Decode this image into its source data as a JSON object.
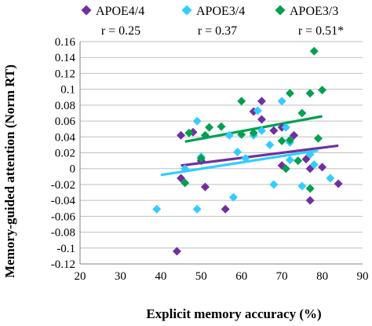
{
  "chart_data": {
    "type": "scatter",
    "xlabel": "Explicit memory accuracy (%)",
    "ylabel": "Memory-guided attention (Norm RT)",
    "xlim": [
      20,
      90
    ],
    "ylim": [
      -0.12,
      0.16
    ],
    "x_ticks": [
      "20",
      "30",
      "40",
      "50",
      "60",
      "70",
      "80",
      "90"
    ],
    "y_ticks": [
      "-0.12",
      "-0.1",
      "-0.08",
      "-0.06",
      "-0.04",
      "-0.02",
      "0",
      "0.02",
      "0.04",
      "0.06",
      "0.08",
      "0.1",
      "0.12",
      "0.14",
      "0.16"
    ],
    "grid": true,
    "legend_position": "top",
    "series": [
      {
        "name": "APOE4/4",
        "color": "#7030A0",
        "marker": "diamond",
        "r": "r = 0.25",
        "points": [
          [
            44,
            -0.104
          ],
          [
            45,
            -0.012
          ],
          [
            45,
            0.042
          ],
          [
            48,
            0.046
          ],
          [
            50,
            0.01
          ],
          [
            51,
            -0.023
          ],
          [
            56,
            -0.051
          ],
          [
            63,
            0.072
          ],
          [
            65,
            0.085
          ],
          [
            65,
            0.062
          ],
          [
            68,
            0.048
          ],
          [
            70,
            0.052
          ],
          [
            70,
            0.004
          ],
          [
            73,
            0.042
          ],
          [
            76,
            0.012
          ],
          [
            77,
            0.0
          ],
          [
            77,
            -0.04
          ],
          [
            80,
            0.002
          ],
          [
            84,
            -0.019
          ]
        ],
        "trend": [
          [
            45,
            0.004
          ],
          [
            84,
            0.029
          ]
        ]
      },
      {
        "name": "APOE3/4",
        "color": "#33CCFF",
        "marker": "diamond",
        "r": "r = 0.37",
        "points": [
          [
            39,
            -0.051
          ],
          [
            46,
            0.0
          ],
          [
            49,
            0.06
          ],
          [
            49,
            -0.051
          ],
          [
            50,
            0.015
          ],
          [
            57,
            0.042
          ],
          [
            58,
            -0.036
          ],
          [
            59,
            0.021
          ],
          [
            61,
            0.013
          ],
          [
            63,
            0.042
          ],
          [
            64,
            0.073
          ],
          [
            65,
            0.048
          ],
          [
            67,
            0.03
          ],
          [
            68,
            -0.02
          ],
          [
            70,
            0.085
          ],
          [
            71,
            0.052
          ],
          [
            72,
            0.033
          ],
          [
            72,
            0.011
          ],
          [
            75,
            -0.022
          ],
          [
            77,
            0.018
          ],
          [
            78,
            0.005
          ],
          [
            82,
            -0.012
          ]
        ],
        "trend": [
          [
            40,
            -0.008
          ],
          [
            79,
            0.023
          ]
        ]
      },
      {
        "name": "APOE3/3",
        "color": "#00A050",
        "marker": "diamond",
        "r": "r = 0.51*",
        "points": [
          [
            46,
            -0.018
          ],
          [
            47,
            0.045
          ],
          [
            50,
            0.013
          ],
          [
            51,
            0.042
          ],
          [
            52,
            0.052
          ],
          [
            55,
            0.053
          ],
          [
            60,
            0.085
          ],
          [
            60,
            0.043
          ],
          [
            63,
            0.045
          ],
          [
            70,
            0.035
          ],
          [
            71,
            0.0
          ],
          [
            72,
            0.095
          ],
          [
            72,
            0.036
          ],
          [
            74,
            0.01
          ],
          [
            75,
            0.07
          ],
          [
            77,
            -0.025
          ],
          [
            77,
            0.095
          ],
          [
            78,
            0.148
          ],
          [
            79,
            0.038
          ],
          [
            80,
            0.099
          ]
        ],
        "trend": [
          [
            46,
            0.034
          ],
          [
            80,
            0.066
          ]
        ]
      }
    ]
  }
}
